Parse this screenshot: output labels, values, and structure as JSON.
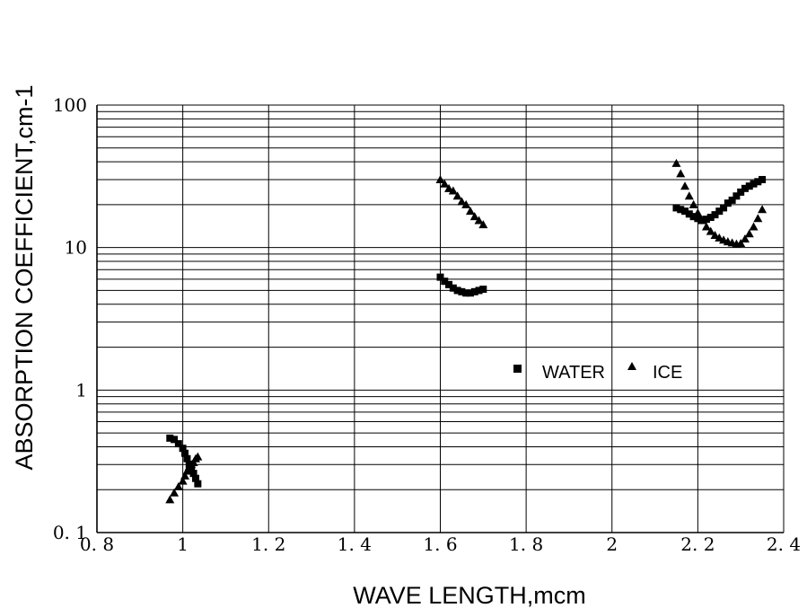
{
  "chart_data": {
    "type": "scatter",
    "title": "",
    "xlabel": "WAVE LENGTH,mcm",
    "ylabel": "ABSORPTION COEFFICIENT,cm-1",
    "xlim": [
      0.8,
      2.4
    ],
    "ylim": [
      0.1,
      100
    ],
    "yscale": "log",
    "grid": true,
    "legend_position": "center-right",
    "x_tick_labels": [
      "0. 8",
      "1",
      "1. 2",
      "1. 4",
      "1. 6",
      "1. 8",
      "2",
      "2. 2",
      "2. 4"
    ],
    "y_tick_labels": [
      "0. 1",
      "1",
      "10",
      "100"
    ],
    "series": [
      {
        "name": "WATER",
        "marker": "square",
        "color": "#000000",
        "points": [
          [
            0.97,
            0.46
          ],
          [
            0.98,
            0.45
          ],
          [
            0.99,
            0.42
          ],
          [
            1.0,
            0.39
          ],
          [
            1.005,
            0.36
          ],
          [
            1.01,
            0.33
          ],
          [
            1.015,
            0.3
          ],
          [
            1.02,
            0.28
          ],
          [
            1.025,
            0.26
          ],
          [
            1.03,
            0.24
          ],
          [
            1.035,
            0.22
          ],
          [
            1.6,
            6.2
          ],
          [
            1.61,
            5.8
          ],
          [
            1.62,
            5.5
          ],
          [
            1.63,
            5.2
          ],
          [
            1.64,
            5.0
          ],
          [
            1.65,
            4.9
          ],
          [
            1.66,
            4.8
          ],
          [
            1.67,
            4.8
          ],
          [
            1.68,
            4.9
          ],
          [
            1.69,
            5.0
          ],
          [
            1.7,
            5.1
          ],
          [
            2.15,
            19
          ],
          [
            2.16,
            18.5
          ],
          [
            2.17,
            18
          ],
          [
            2.18,
            17.2
          ],
          [
            2.19,
            16.5
          ],
          [
            2.2,
            16
          ],
          [
            2.21,
            15.7
          ],
          [
            2.22,
            15.8
          ],
          [
            2.23,
            16.3
          ],
          [
            2.24,
            17
          ],
          [
            2.25,
            18
          ],
          [
            2.26,
            19
          ],
          [
            2.27,
            20.5
          ],
          [
            2.28,
            21.5
          ],
          [
            2.29,
            23
          ],
          [
            2.3,
            24.5
          ],
          [
            2.31,
            26
          ],
          [
            2.32,
            27
          ],
          [
            2.33,
            28
          ],
          [
            2.34,
            29
          ],
          [
            2.35,
            30
          ]
        ]
      },
      {
        "name": "ICE",
        "marker": "triangle",
        "color": "#000000",
        "points": [
          [
            0.97,
            0.17
          ],
          [
            0.98,
            0.19
          ],
          [
            0.99,
            0.21
          ],
          [
            1.0,
            0.23
          ],
          [
            1.005,
            0.25
          ],
          [
            1.01,
            0.27
          ],
          [
            1.015,
            0.29
          ],
          [
            1.02,
            0.3
          ],
          [
            1.025,
            0.31
          ],
          [
            1.03,
            0.33
          ],
          [
            1.035,
            0.34
          ],
          [
            1.6,
            30
          ],
          [
            1.61,
            28
          ],
          [
            1.62,
            26
          ],
          [
            1.63,
            25
          ],
          [
            1.64,
            23
          ],
          [
            1.65,
            21
          ],
          [
            1.66,
            20
          ],
          [
            1.67,
            18
          ],
          [
            1.68,
            16.5
          ],
          [
            1.69,
            15.5
          ],
          [
            1.7,
            14.5
          ],
          [
            2.15,
            39
          ],
          [
            2.16,
            33
          ],
          [
            2.17,
            27
          ],
          [
            2.18,
            23
          ],
          [
            2.19,
            20
          ],
          [
            2.2,
            17.5
          ],
          [
            2.21,
            15.5
          ],
          [
            2.22,
            14
          ],
          [
            2.23,
            13
          ],
          [
            2.24,
            12.2
          ],
          [
            2.25,
            11.7
          ],
          [
            2.26,
            11.3
          ],
          [
            2.27,
            11
          ],
          [
            2.28,
            10.8
          ],
          [
            2.29,
            10.6
          ],
          [
            2.3,
            10.7
          ],
          [
            2.31,
            11.5
          ],
          [
            2.32,
            12.5
          ],
          [
            2.33,
            14
          ],
          [
            2.34,
            16
          ],
          [
            2.35,
            18.5
          ]
        ]
      }
    ]
  }
}
